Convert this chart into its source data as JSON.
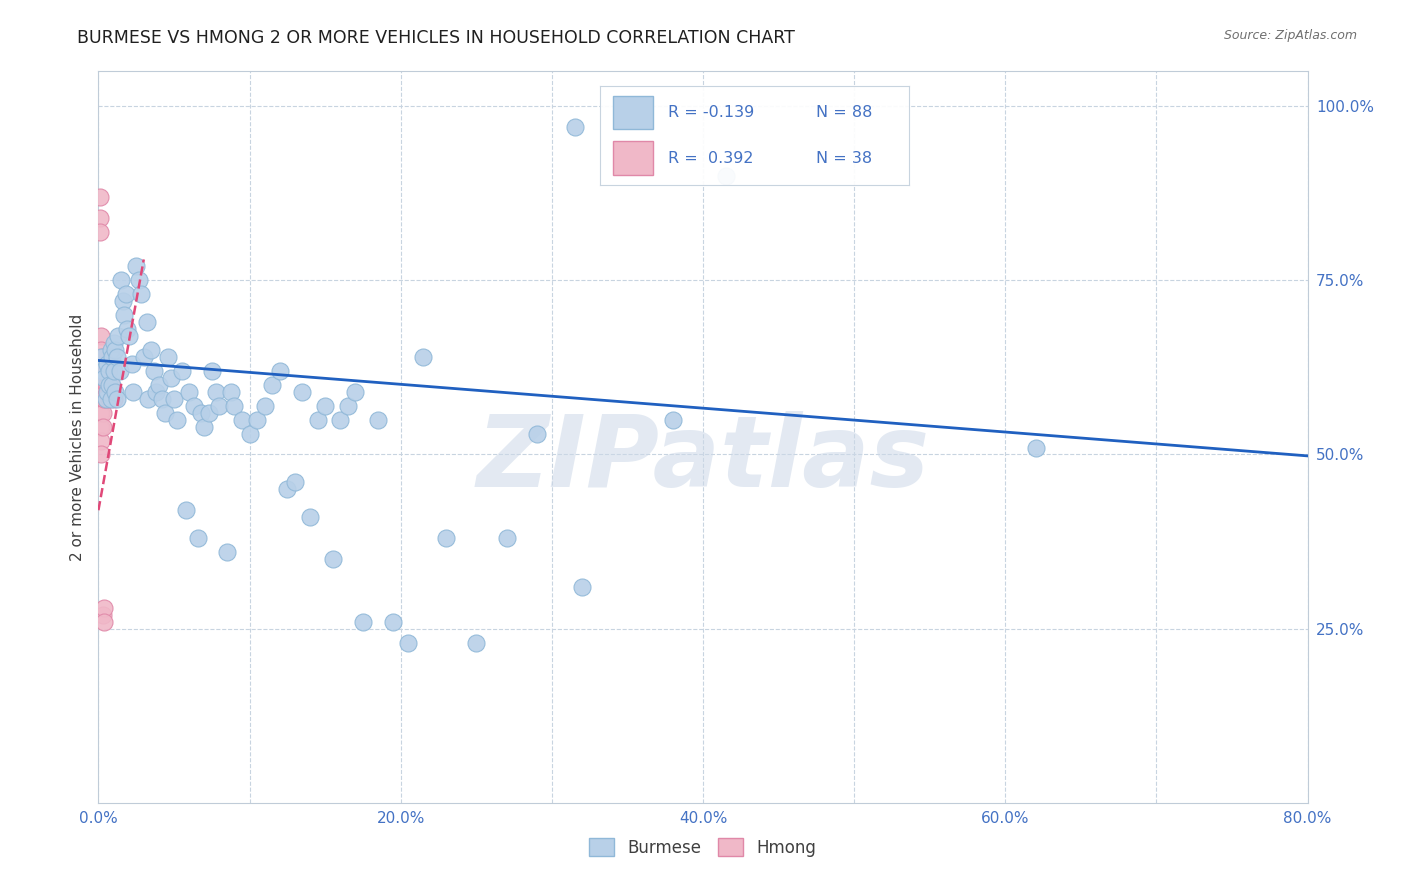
{
  "title": "BURMESE VS HMONG 2 OR MORE VEHICLES IN HOUSEHOLD CORRELATION CHART",
  "source": "Source: ZipAtlas.com",
  "ylabel": "2 or more Vehicles in Household",
  "xlim": [
    0,
    0.8
  ],
  "ylim": [
    0,
    1.05
  ],
  "burmese_color": "#b8d0e8",
  "burmese_edge_color": "#90b8d8",
  "hmong_color": "#f0b8c8",
  "hmong_edge_color": "#e088a8",
  "trend_blue_color": "#2060c0",
  "trend_pink_color": "#e04878",
  "watermark": "ZIPatlas",
  "blue_line_x0": 0.0,
  "blue_line_y0": 0.635,
  "blue_line_x1": 0.8,
  "blue_line_y1": 0.498,
  "pink_line_x0": 0.0,
  "pink_line_y0": 0.42,
  "pink_line_x1": 0.03,
  "pink_line_y1": 0.78,
  "burmese_x": [
    0.002,
    0.003,
    0.004,
    0.005,
    0.006,
    0.006,
    0.007,
    0.007,
    0.008,
    0.008,
    0.009,
    0.009,
    0.01,
    0.01,
    0.011,
    0.011,
    0.012,
    0.012,
    0.013,
    0.014,
    0.015,
    0.016,
    0.017,
    0.018,
    0.019,
    0.02,
    0.022,
    0.023,
    0.025,
    0.027,
    0.028,
    0.03,
    0.032,
    0.033,
    0.035,
    0.037,
    0.038,
    0.04,
    0.042,
    0.044,
    0.046,
    0.048,
    0.05,
    0.052,
    0.055,
    0.058,
    0.06,
    0.063,
    0.066,
    0.068,
    0.07,
    0.073,
    0.075,
    0.078,
    0.08,
    0.085,
    0.088,
    0.09,
    0.095,
    0.1,
    0.105,
    0.11,
    0.115,
    0.12,
    0.125,
    0.13,
    0.135,
    0.14,
    0.145,
    0.15,
    0.155,
    0.16,
    0.165,
    0.17,
    0.175,
    0.185,
    0.195,
    0.205,
    0.215,
    0.23,
    0.25,
    0.27,
    0.29,
    0.315,
    0.32,
    0.38,
    0.415,
    0.62
  ],
  "burmese_y": [
    0.64,
    0.62,
    0.61,
    0.58,
    0.63,
    0.59,
    0.62,
    0.6,
    0.65,
    0.58,
    0.64,
    0.6,
    0.62,
    0.66,
    0.59,
    0.65,
    0.58,
    0.64,
    0.67,
    0.62,
    0.75,
    0.72,
    0.7,
    0.73,
    0.68,
    0.67,
    0.63,
    0.59,
    0.77,
    0.75,
    0.73,
    0.64,
    0.69,
    0.58,
    0.65,
    0.62,
    0.59,
    0.6,
    0.58,
    0.56,
    0.64,
    0.61,
    0.58,
    0.55,
    0.62,
    0.42,
    0.59,
    0.57,
    0.38,
    0.56,
    0.54,
    0.56,
    0.62,
    0.59,
    0.57,
    0.36,
    0.59,
    0.57,
    0.55,
    0.53,
    0.55,
    0.57,
    0.6,
    0.62,
    0.45,
    0.46,
    0.59,
    0.41,
    0.55,
    0.57,
    0.35,
    0.55,
    0.57,
    0.59,
    0.26,
    0.55,
    0.26,
    0.23,
    0.64,
    0.38,
    0.23,
    0.38,
    0.53,
    0.97,
    0.31,
    0.55,
    0.9,
    0.51
  ],
  "hmong_x": [
    0.001,
    0.001,
    0.001,
    0.001,
    0.001,
    0.001,
    0.001,
    0.001,
    0.001,
    0.002,
    0.002,
    0.002,
    0.002,
    0.002,
    0.002,
    0.002,
    0.002,
    0.002,
    0.003,
    0.003,
    0.003,
    0.003,
    0.003,
    0.003,
    0.003,
    0.004,
    0.004,
    0.004,
    0.004,
    0.004,
    0.005,
    0.005,
    0.005,
    0.006,
    0.006,
    0.007,
    0.008,
    0.01
  ],
  "hmong_y": [
    0.87,
    0.84,
    0.82,
    0.64,
    0.62,
    0.6,
    0.58,
    0.56,
    0.54,
    0.67,
    0.65,
    0.62,
    0.6,
    0.58,
    0.56,
    0.54,
    0.52,
    0.5,
    0.64,
    0.62,
    0.6,
    0.58,
    0.56,
    0.54,
    0.27,
    0.62,
    0.6,
    0.58,
    0.28,
    0.26,
    0.62,
    0.6,
    0.58,
    0.62,
    0.6,
    0.58,
    0.6,
    0.58
  ]
}
